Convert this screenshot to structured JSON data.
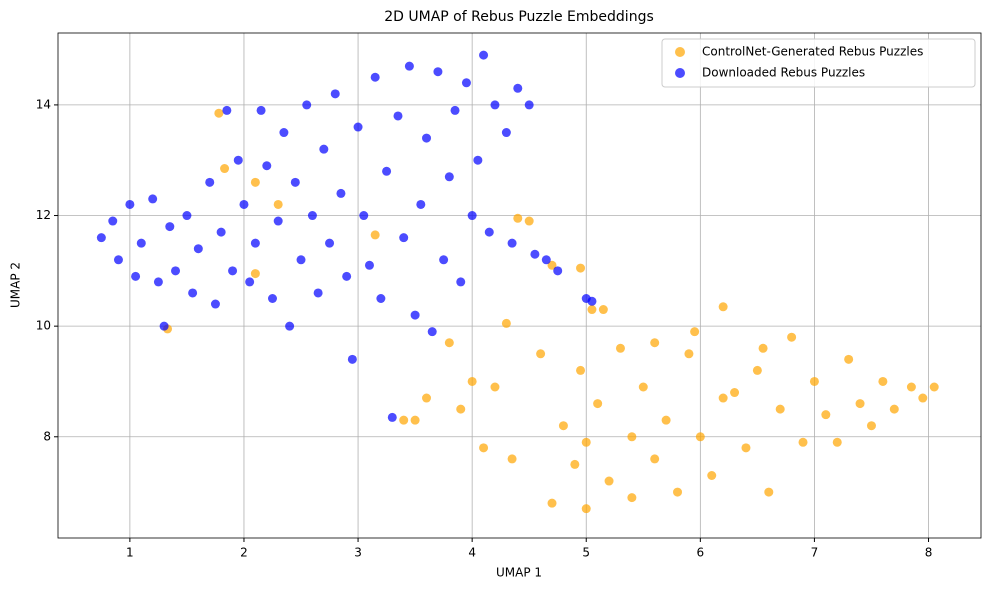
{
  "chart_data": {
    "type": "scatter",
    "title": "2D UMAP of Rebus Puzzle Embeddings",
    "x_label": "UMAP 1",
    "y_label": "UMAP 2",
    "xlim": [
      0.37,
      8.46
    ],
    "ylim": [
      6.17,
      15.3
    ],
    "xticks": [
      1,
      2,
      3,
      4,
      5,
      6,
      7,
      8
    ],
    "yticks": [
      8,
      10,
      12,
      14
    ],
    "grid": true,
    "legend": "upper right",
    "series": [
      {
        "name": "ControlNet-Generated Rebus Puzzles",
        "color": "#ffa500",
        "x": [
          1.33,
          1.78,
          1.83,
          2.1,
          2.1,
          2.3,
          3.15,
          3.4,
          3.5,
          3.6,
          3.8,
          3.9,
          4.0,
          4.1,
          4.2,
          4.3,
          4.35,
          4.4,
          4.5,
          4.6,
          4.7,
          4.7,
          4.8,
          4.9,
          4.95,
          4.95,
          5.0,
          5.1,
          5.15,
          5.2,
          5.3,
          5.4,
          5.5,
          5.6,
          5.6,
          5.7,
          5.8,
          5.9,
          5.95,
          6.0,
          6.1,
          6.2,
          6.3,
          6.4,
          6.5,
          6.6,
          6.7,
          6.8,
          6.9,
          7.0,
          7.1,
          7.2,
          7.3,
          7.4,
          7.5,
          7.6,
          7.7,
          7.85,
          7.95,
          8.05,
          5.05,
          5.4,
          6.55,
          5.0,
          6.2
        ],
        "y": [
          9.95,
          13.85,
          12.85,
          10.95,
          12.6,
          12.2,
          11.65,
          8.3,
          8.3,
          8.7,
          9.7,
          8.5,
          9.0,
          7.8,
          8.9,
          10.05,
          7.6,
          11.95,
          11.9,
          9.5,
          11.1,
          6.8,
          8.2,
          7.5,
          11.05,
          9.2,
          6.7,
          8.6,
          10.3,
          7.2,
          9.6,
          6.9,
          8.9,
          9.7,
          7.6,
          8.3,
          7.0,
          9.5,
          9.9,
          8.0,
          7.3,
          10.35,
          8.8,
          7.8,
          9.2,
          7.0,
          8.5,
          9.8,
          7.9,
          9.0,
          8.4,
          7.9,
          9.4,
          8.6,
          8.2,
          9.0,
          8.5,
          8.9,
          8.7,
          8.9,
          10.3,
          8.0,
          9.6,
          7.9,
          8.7
        ]
      },
      {
        "name": "Downloaded Rebus Puzzles",
        "color": "#0000ff",
        "x": [
          0.75,
          0.85,
          0.9,
          1.0,
          1.05,
          1.1,
          1.2,
          1.25,
          1.3,
          1.35,
          1.4,
          1.5,
          1.55,
          1.6,
          1.7,
          1.75,
          1.8,
          1.85,
          1.9,
          1.95,
          2.0,
          2.05,
          2.1,
          2.15,
          2.2,
          2.25,
          2.3,
          2.35,
          2.4,
          2.45,
          2.5,
          2.55,
          2.6,
          2.65,
          2.7,
          2.75,
          2.8,
          2.85,
          2.9,
          2.95,
          3.0,
          3.05,
          3.1,
          3.15,
          3.2,
          3.25,
          3.3,
          3.35,
          3.4,
          3.45,
          3.5,
          3.55,
          3.6,
          3.65,
          3.7,
          3.75,
          3.8,
          3.85,
          3.9,
          3.95,
          4.0,
          4.05,
          4.1,
          4.15,
          4.2,
          4.3,
          4.35,
          4.4,
          4.5,
          4.55,
          4.65,
          4.75,
          5.0,
          5.05
        ],
        "y": [
          11.6,
          11.9,
          11.2,
          12.2,
          10.9,
          11.5,
          12.3,
          10.8,
          10.0,
          11.8,
          11.0,
          12.0,
          10.6,
          11.4,
          12.6,
          10.4,
          11.7,
          13.9,
          11.0,
          13.0,
          12.2,
          10.8,
          11.5,
          13.9,
          12.9,
          10.5,
          11.9,
          13.5,
          10.0,
          12.6,
          11.2,
          14.0,
          12.0,
          10.6,
          13.2,
          11.5,
          14.2,
          12.4,
          10.9,
          9.4,
          13.6,
          12.0,
          11.1,
          14.5,
          10.5,
          12.8,
          8.35,
          13.8,
          11.6,
          14.7,
          10.2,
          12.2,
          13.4,
          9.9,
          14.6,
          11.2,
          12.7,
          13.9,
          10.8,
          14.4,
          12.0,
          13.0,
          14.9,
          11.7,
          14.0,
          13.5,
          11.5,
          14.3,
          14.0,
          11.3,
          11.2,
          11.0,
          10.5,
          10.45
        ]
      }
    ]
  }
}
